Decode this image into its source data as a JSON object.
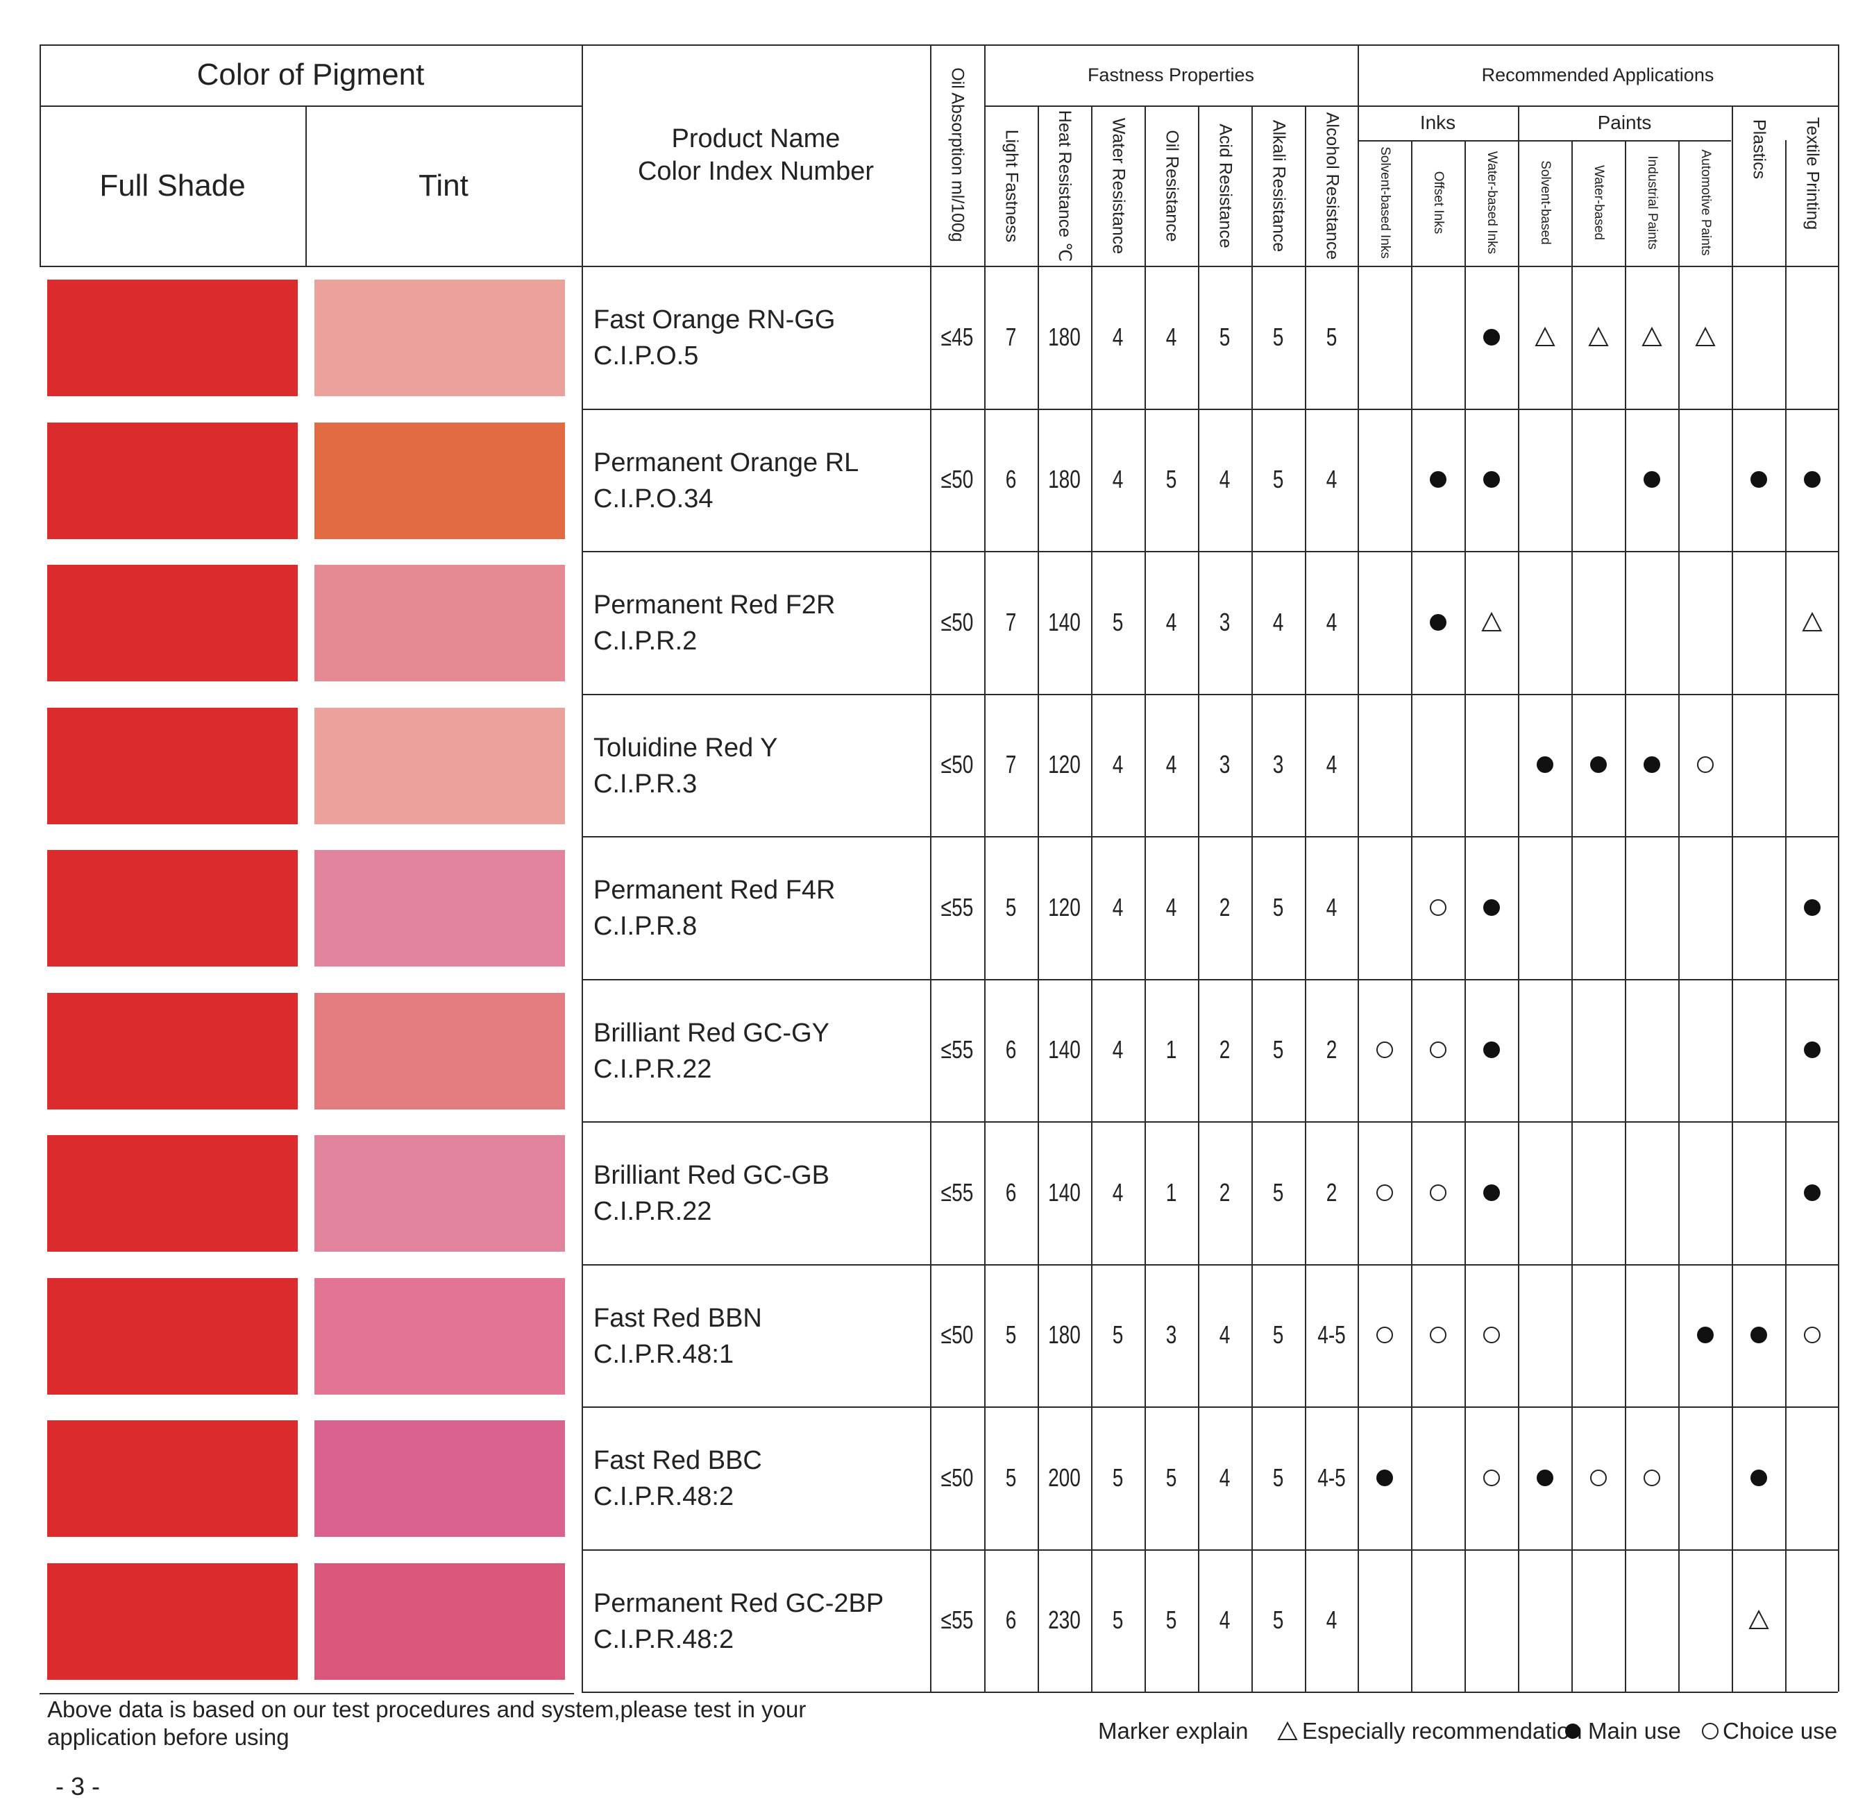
{
  "header": {
    "color_of_pigment": "Color of  Pigment",
    "full_shade": "Full Shade",
    "tint": "Tint",
    "product_name": "Product Name",
    "color_index": "Color Index Number",
    "oil_absorption": "Oil Absorption ml/100g",
    "fastness_properties": "Fastness Properties",
    "recommended_applications": "Recommended Applications",
    "fastness_columns": [
      "Light Fastness",
      "Heat Resistance ℃",
      "Water Resistance",
      "Oil Resistance",
      "Acid Resistance",
      "Alkali Resistance",
      "Alcohol Resistance"
    ],
    "inks": "Inks",
    "paints": "Paints",
    "ink_columns": [
      "Solvent-based Inks",
      "Offset Inks",
      "Water-based Inks"
    ],
    "paint_columns": [
      "Solvent-based",
      "Water-based",
      "Industrial Paints",
      "Automotive Paints"
    ],
    "plastics": "Plastics",
    "textile": "Textile Printing"
  },
  "rows": [
    {
      "name": "Fast Orange RN-GG",
      "ci": "C.I.P.O.5",
      "full": "#dc2b2c",
      "tint": "#eba19c",
      "oil": "≤45",
      "fast": [
        "7",
        "180",
        "4",
        "4",
        "5",
        "5",
        "5"
      ],
      "apps": [
        "",
        "",
        "main",
        "esp",
        "esp",
        "esp",
        "esp",
        "",
        ""
      ]
    },
    {
      "name": "Permanent Orange RL",
      "ci": "C.I.P.O.34",
      "full": "#dc2b2c",
      "tint": "#e26b43",
      "oil": "≤50",
      "fast": [
        "6",
        "180",
        "4",
        "5",
        "4",
        "5",
        "4"
      ],
      "apps": [
        "",
        "main",
        "main",
        "",
        "",
        "main",
        "",
        "main",
        "main"
      ]
    },
    {
      "name": "Permanent Red F2R",
      "ci": "C.I.P.R.2",
      "full": "#dc2b2c",
      "tint": "#e58992",
      "oil": "≤50",
      "fast": [
        "7",
        "140",
        "5",
        "4",
        "3",
        "4",
        "4"
      ],
      "apps": [
        "",
        "main",
        "esp",
        "",
        "",
        "",
        "",
        "",
        "esp"
      ]
    },
    {
      "name": "Toluidine Red Y",
      "ci": "C.I.P.R.3",
      "full": "#dc2b2c",
      "tint": "#eba19c",
      "oil": "≤50",
      "fast": [
        "7",
        "120",
        "4",
        "4",
        "3",
        "3",
        "4"
      ],
      "apps": [
        "",
        "",
        "",
        "main",
        "main",
        "main",
        "choice",
        "",
        ""
      ]
    },
    {
      "name": "Permanent Red F4R",
      "ci": "C.I.P.R.8",
      "full": "#dc2b2c",
      "tint": "#e3849e",
      "oil": "≤55",
      "fast": [
        "5",
        "120",
        "4",
        "4",
        "2",
        "5",
        "4"
      ],
      "apps": [
        "",
        "choice",
        "main",
        "",
        "",
        "",
        "",
        "",
        "main"
      ]
    },
    {
      "name": "Brilliant Red GC-GY",
      "ci": "C.I.P.R.22",
      "full": "#dc2b2c",
      "tint": "#e37c7e",
      "oil": "≤55",
      "fast": [
        "6",
        "140",
        "4",
        "1",
        "2",
        "5",
        "2"
      ],
      "apps": [
        "choice",
        "choice",
        "main",
        "",
        "",
        "",
        "",
        "",
        "main"
      ]
    },
    {
      "name": "Brilliant Red GC-GB",
      "ci": "C.I.P.R.22",
      "full": "#dc2b2c",
      "tint": "#e3849e",
      "oil": "≤55",
      "fast": [
        "6",
        "140",
        "4",
        "1",
        "2",
        "5",
        "2"
      ],
      "apps": [
        "choice",
        "choice",
        "main",
        "",
        "",
        "",
        "",
        "",
        "main"
      ]
    },
    {
      "name": "Fast Red BBN",
      "ci": "C.I.P.R.48:1",
      "full": "#dc2b2c",
      "tint": "#e17593",
      "oil": "≤50",
      "fast": [
        "5",
        "180",
        "5",
        "3",
        "4",
        "5",
        "4-5"
      ],
      "apps": [
        "choice",
        "choice",
        "choice",
        "",
        "",
        "",
        "main",
        "main",
        "choice"
      ]
    },
    {
      "name": "Fast Red BBC",
      "ci": "C.I.P.R.48:2",
      "full": "#dc2b2c",
      "tint": "#d9628e",
      "oil": "≤50",
      "fast": [
        "5",
        "200",
        "5",
        "5",
        "4",
        "5",
        "4-5"
      ],
      "apps": [
        "main",
        "",
        "choice",
        "main",
        "choice",
        "choice",
        "",
        "main",
        ""
      ]
    },
    {
      "name": "Permanent Red GC-2BP",
      "ci": "C.I.P.R.48:2",
      "full": "#dc2b2c",
      "tint": "#d9577a",
      "oil": "≤55",
      "fast": [
        "6",
        "230",
        "5",
        "5",
        "4",
        "5",
        "4"
      ],
      "apps": [
        "",
        "",
        "",
        "",
        "",
        "",
        "",
        "esp",
        ""
      ]
    }
  ],
  "footer": {
    "note": "Above data is based on our test procedures and system,please test in your application before using",
    "marker_explain": "Marker explain",
    "especially": "Especially recommendation",
    "main_use": "Main use",
    "choice_use": "Choice use",
    "page": "- 3 -"
  }
}
